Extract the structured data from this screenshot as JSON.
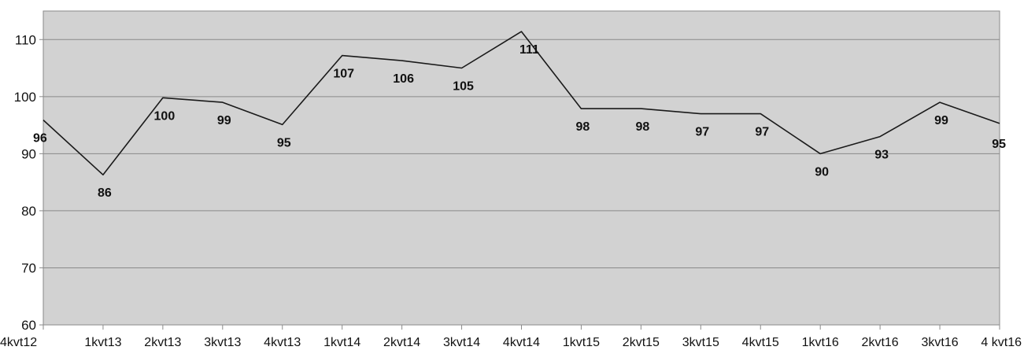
{
  "chart_data": {
    "type": "line",
    "title": "",
    "xlabel": "",
    "ylabel": "",
    "ylim": [
      60,
      115
    ],
    "yticks": [
      60,
      70,
      80,
      90,
      100,
      110
    ],
    "grid": true,
    "legend": "none",
    "categories": [
      "4kvt12",
      "1kvt13",
      "2kvt13",
      "3kvt13",
      "4kvt13",
      "1kvt14",
      "2kvt14",
      "3kvt14",
      "4kvt14",
      "1kvt15",
      "2kvt15",
      "3kvt15",
      "4kvt15",
      "1kvt16",
      "2kvt16",
      "3kvt16",
      "4 kvt16"
    ],
    "values": [
      95.9,
      86.3,
      99.8,
      99.0,
      95.1,
      107.2,
      106.3,
      105.0,
      111.4,
      97.9,
      97.9,
      97.0,
      97.0,
      90.0,
      93.0,
      99.0,
      95.3
    ],
    "data_labels": [
      "96",
      "86",
      "100",
      "99",
      "95",
      "107",
      "106",
      "105",
      "111",
      "98",
      "98",
      "97",
      "97",
      "90",
      "93",
      "99",
      "95"
    ],
    "colors": {
      "plot_background": "#d2d2d2",
      "gridline": "#8a8a8a",
      "line": "#1a1a1a",
      "axis": "#8a8a8a"
    }
  }
}
